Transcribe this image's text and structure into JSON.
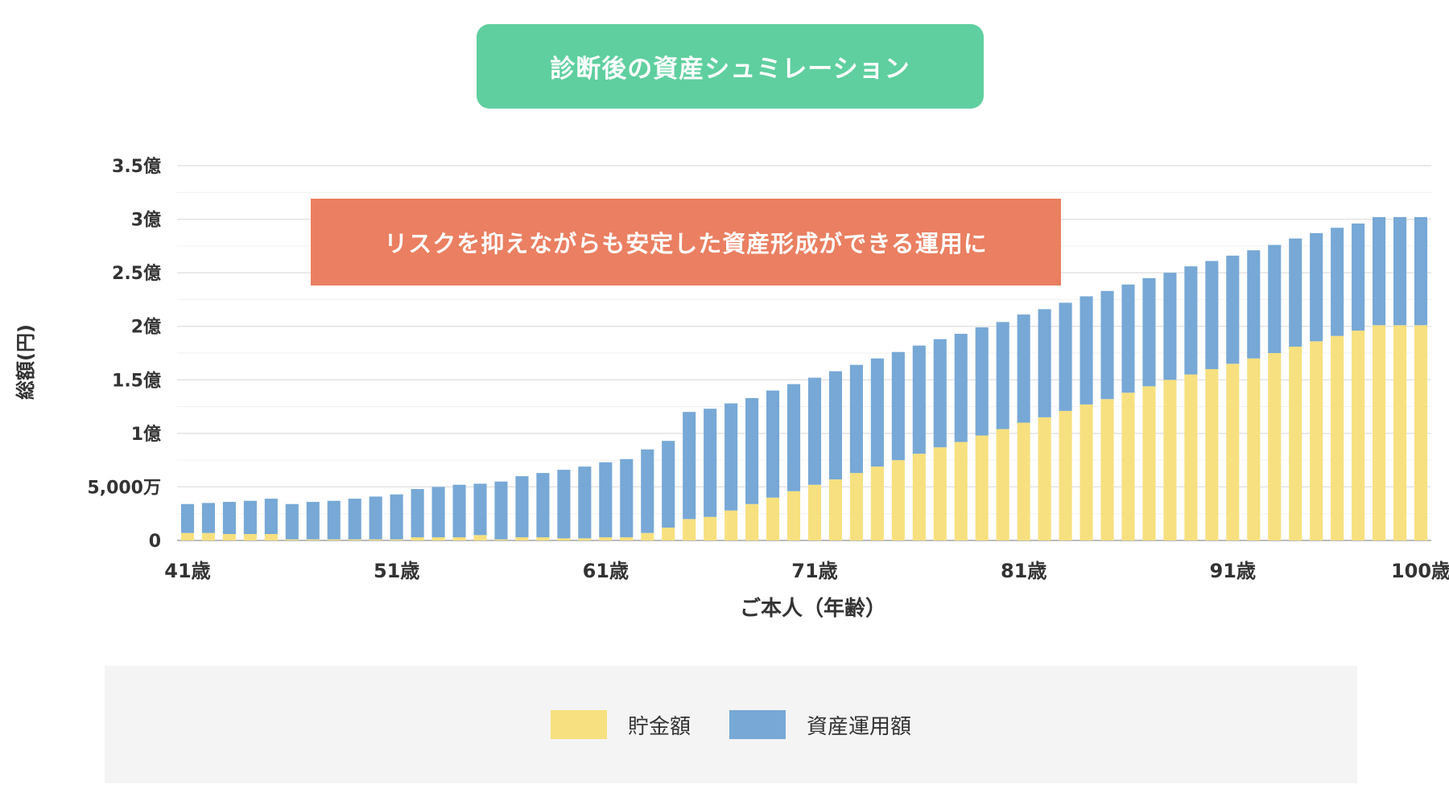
{
  "header": {
    "title": "診断後の資産シュミレーション"
  },
  "callout": {
    "text": "リスクを抑えながらも安定した資産形成ができる運用に"
  },
  "colors": {
    "title_bg": "#5fcf9f",
    "callout_bg": "#ea7f61",
    "savings": "#f7e07f",
    "investment": "#77a8d6",
    "grid": "#e3e3e3"
  },
  "chart_data": {
    "type": "bar",
    "stacked": true,
    "xlabel": "ご本人（年齢）",
    "ylabel": "総額(円)",
    "ylim": [
      0,
      350000000
    ],
    "yticks": [
      {
        "value": 0,
        "label": "0"
      },
      {
        "value": 50000000,
        "label": "5,000万"
      },
      {
        "value": 100000000,
        "label": "1億"
      },
      {
        "value": 150000000,
        "label": "1.5億"
      },
      {
        "value": 200000000,
        "label": "2億"
      },
      {
        "value": 250000000,
        "label": "2.5億"
      },
      {
        "value": 300000000,
        "label": "3億"
      },
      {
        "value": 350000000,
        "label": "3.5億"
      }
    ],
    "xticks": [
      {
        "age": 41,
        "label": "41歳"
      },
      {
        "age": 51,
        "label": "51歳"
      },
      {
        "age": 61,
        "label": "61歳"
      },
      {
        "age": 71,
        "label": "71歳"
      },
      {
        "age": 81,
        "label": "81歳"
      },
      {
        "age": 91,
        "label": "91歳"
      },
      {
        "age": 100,
        "label": "100歳"
      }
    ],
    "grid": true,
    "legend_position": "bottom",
    "categories": [
      41,
      42,
      43,
      44,
      45,
      46,
      47,
      48,
      49,
      50,
      51,
      52,
      53,
      54,
      55,
      56,
      57,
      58,
      59,
      60,
      61,
      62,
      63,
      64,
      65,
      66,
      67,
      68,
      69,
      70,
      71,
      72,
      73,
      74,
      75,
      76,
      77,
      78,
      79,
      80,
      81,
      82,
      83,
      84,
      85,
      86,
      87,
      88,
      89,
      90,
      91,
      92,
      93,
      94,
      95,
      96,
      97,
      98,
      99,
      100
    ],
    "series": [
      {
        "name": "貯金額",
        "color": "#f7e07f",
        "values": [
          7,
          7,
          6,
          6,
          6,
          1,
          1,
          1,
          1,
          1,
          1,
          3,
          3,
          3,
          5,
          1,
          3,
          3,
          2,
          2,
          3,
          3,
          7,
          12,
          20,
          22,
          28,
          34,
          40,
          46,
          52,
          57,
          63,
          69,
          75,
          81,
          87,
          92,
          98,
          104,
          110,
          115,
          121,
          127,
          132,
          138,
          144,
          150,
          155,
          160,
          165,
          170,
          175,
          181,
          186,
          191,
          196,
          201,
          201,
          201
        ]
      },
      {
        "name": "資産運用額",
        "color": "#77a8d6",
        "values": [
          27,
          28,
          30,
          31,
          33,
          33,
          35,
          36,
          38,
          40,
          42,
          45,
          47,
          49,
          48,
          54,
          57,
          60,
          64,
          67,
          70,
          73,
          78,
          81,
          100,
          101,
          100,
          99,
          100,
          100,
          100,
          101,
          101,
          101,
          101,
          101,
          101,
          101,
          101,
          100,
          101,
          101,
          101,
          101,
          101,
          101,
          101,
          100,
          101,
          101,
          101,
          101,
          101,
          101,
          101,
          101,
          100,
          101,
          101,
          101
        ]
      }
    ]
  }
}
